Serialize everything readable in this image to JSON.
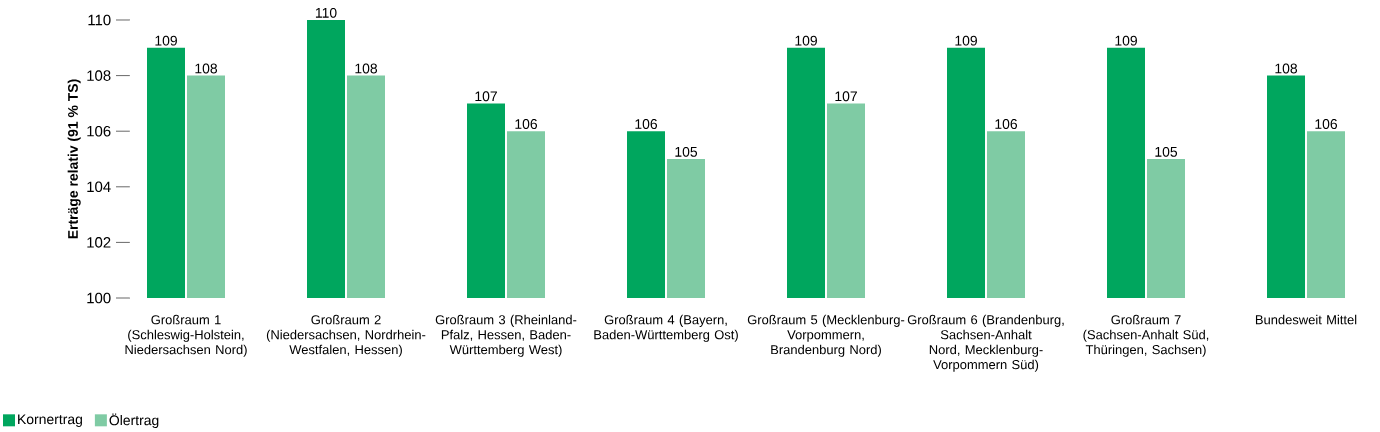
{
  "chart_data": {
    "type": "bar",
    "ylabel": "Erträge relativ (91 % TS)",
    "categories": [
      "Großraum 1 (Schleswig-Holstein, Niedersachsen Nord)",
      "Großraum 2 (Niedersachsen, Nordrhein-Westfalen, Hessen)",
      "Großraum 3 (Rheinland-Pfalz, Hessen, Baden-Württemberg West)",
      "Großraum 4 (Bayern, Baden-Württemberg Ost)",
      "Großraum 5 (Mecklenburg-Vorpommern, Brandenburg Nord)",
      "Großraum 6 (Brandenburg, Sachsen-Anhalt Nord, Mecklenburg-Vorpommern Süd)",
      "Großraum 7 (Sachsen-Anhalt Süd, Thüringen, Sachsen)",
      "Bundesweit Mittel"
    ],
    "series": [
      {
        "name": "Kornertrag",
        "color": "#00a65e",
        "values": [
          109,
          110,
          107,
          106,
          109,
          109,
          109,
          108
        ]
      },
      {
        "name": "Ölertrag",
        "color": "#7fcba4",
        "values": [
          108,
          108,
          106,
          105,
          107,
          106,
          105,
          106
        ]
      }
    ],
    "ylim": [
      100,
      110
    ],
    "yticks": [
      100,
      102,
      104,
      106,
      108,
      110
    ],
    "data_labels": true,
    "legend": "bottom left"
  }
}
